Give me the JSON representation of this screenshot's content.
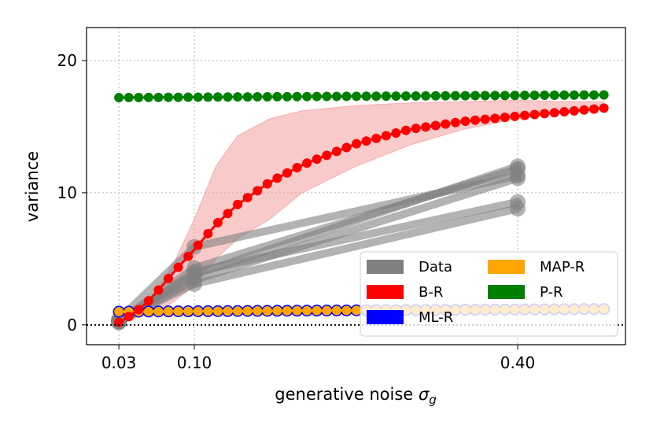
{
  "chart_data": {
    "type": "line",
    "title": "",
    "xlabel": "generative noise",
    "xlabel_symbol": "σ",
    "xlabel_subscript": "g",
    "ylabel": "variance",
    "xlim": [
      0.0,
      0.5
    ],
    "ylim": [
      -1.5,
      22.5
    ],
    "xticks": [
      0.03,
      0.1,
      0.4
    ],
    "xtick_labels": [
      "0.03",
      "0.10",
      "0.40"
    ],
    "yticks": [
      0,
      10,
      20
    ],
    "ytick_labels": [
      "0",
      "10",
      "20"
    ],
    "grid": true,
    "zero_line": 0,
    "legend_position": "lower-right",
    "legend": [
      {
        "label": "Data",
        "color": "#808080"
      },
      {
        "label": "B-R",
        "color": "#ff0000"
      },
      {
        "label": "ML-R",
        "color": "#0000ff"
      },
      {
        "label": "MAP-R",
        "color": "#ffa500"
      },
      {
        "label": "P-R",
        "color": "#008000"
      }
    ],
    "colors": {
      "data": "#808080",
      "br": "#ff0000",
      "br_band": "#f4a6a6",
      "mlr": "#0000ff",
      "mapr": "#ffa500",
      "pr": "#008000"
    },
    "series": {
      "pr": {
        "name": "P-R",
        "x_start": 0.03,
        "x_end": 0.48,
        "n": 50,
        "y_start": 17.2,
        "y_end": 17.4
      },
      "br": {
        "name": "B-R",
        "x_start": 0.03,
        "x_end": 0.48,
        "n": 50,
        "curve_x": [
          0.03,
          0.045,
          0.06,
          0.08,
          0.1,
          0.12,
          0.14,
          0.17,
          0.2,
          0.25,
          0.3,
          0.35,
          0.4,
          0.44,
          0.48
        ],
        "curve_y": [
          0.2,
          0.9,
          2.0,
          3.9,
          5.7,
          7.6,
          9.1,
          10.8,
          12.1,
          13.7,
          14.8,
          15.4,
          15.8,
          16.1,
          16.4
        ]
      },
      "br_band": {
        "x": [
          0.03,
          0.045,
          0.06,
          0.08,
          0.1,
          0.12,
          0.14,
          0.17,
          0.2,
          0.25,
          0.3,
          0.35,
          0.4,
          0.44,
          0.48
        ],
        "upper": [
          0.3,
          0.8,
          2.0,
          4.5,
          8.0,
          12.0,
          14.3,
          15.6,
          16.2,
          16.6,
          16.8,
          16.9,
          17.0,
          16.9,
          16.9
        ],
        "lower": [
          0.2,
          0.5,
          0.9,
          1.7,
          3.0,
          5.0,
          6.5,
          8.0,
          10.0,
          12.0,
          13.6,
          14.8,
          15.6,
          16.0,
          16.3
        ]
      },
      "mlr": {
        "name": "ML-R",
        "x_start": 0.03,
        "x_end": 0.48,
        "n": 50,
        "y_start": 1.0,
        "y_end": 1.2
      },
      "mapr": {
        "name": "MAP-R",
        "x_start": 0.03,
        "x_end": 0.48,
        "n": 50,
        "y_start": 1.0,
        "y_end": 1.2
      },
      "data": [
        {
          "name": "Data",
          "x": [
            0.03,
            0.1,
            0.4
          ],
          "y": [
            0.4,
            5.9,
            11.3
          ]
        },
        {
          "name": "Data",
          "x": [
            0.03,
            0.1,
            0.4
          ],
          "y": [
            0.3,
            4.3,
            11.8
          ]
        },
        {
          "name": "Data",
          "x": [
            0.03,
            0.1,
            0.4
          ],
          "y": [
            0.25,
            3.8,
            12.0
          ]
        },
        {
          "name": "Data",
          "x": [
            0.03,
            0.1,
            0.4
          ],
          "y": [
            0.2,
            4.0,
            9.3
          ]
        },
        {
          "name": "Data",
          "x": [
            0.03,
            0.1,
            0.4
          ],
          "y": [
            0.3,
            3.1,
            8.8
          ]
        },
        {
          "name": "Data",
          "x": [
            0.03,
            0.1,
            0.4
          ],
          "y": [
            0.2,
            3.4,
            11.1
          ]
        }
      ]
    }
  }
}
